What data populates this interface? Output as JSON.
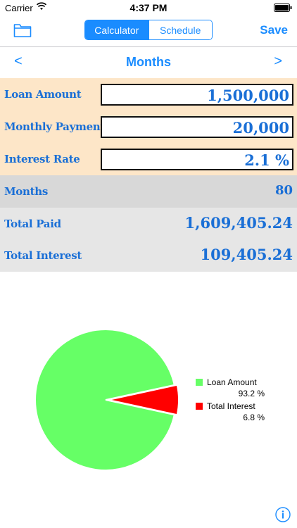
{
  "status_bar": {
    "carrier": "Carrier",
    "time": "4:37 PM"
  },
  "nav": {
    "tabs": [
      {
        "label": "Calculator",
        "active": true
      },
      {
        "label": "Schedule",
        "active": false
      }
    ],
    "save_label": "Save",
    "left_icon": "folder-icon"
  },
  "mode": {
    "title": "Months",
    "prev": "<",
    "next": ">"
  },
  "inputs": [
    {
      "label": "Loan Amount",
      "value": "1,500,000"
    },
    {
      "label": "Monthly Payment",
      "value": "20,000"
    },
    {
      "label": "Interest Rate",
      "value": "2.1 %"
    }
  ],
  "results": [
    {
      "label": "Months",
      "value": "80"
    },
    {
      "label": "Total Paid",
      "value": "1,609,405.24"
    },
    {
      "label": "Total Interest",
      "value": "109,405.24"
    }
  ],
  "chart_data": {
    "type": "pie",
    "title": "",
    "legend_position": "right",
    "slices": [
      {
        "name": "Loan Amount",
        "value": 93.2,
        "label": "93.2 %",
        "color": "#66ff66"
      },
      {
        "name": "Total Interest",
        "value": 6.8,
        "label": "6.8 %",
        "color": "#ff0000"
      }
    ]
  },
  "colors": {
    "accent": "#1a8cff",
    "input_bg": "#fde6c8",
    "result_bg": "#e6e6e6",
    "value_text": "#1a6fd6"
  },
  "footer": {
    "icon": "info-icon"
  }
}
